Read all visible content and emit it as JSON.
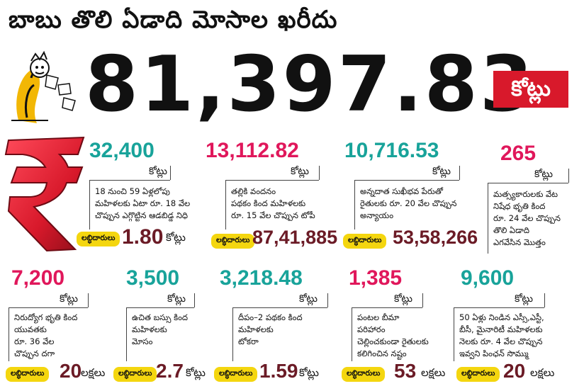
{
  "headline": "బాబు తొలి ఏడాది మోసాల ఖరీదు",
  "total": {
    "amount": "81,397.83",
    "unit": "కోట్లు"
  },
  "beneficiary_label": "లబ్ధిదారులు",
  "accent_colors": {
    "teal": "#18a39a",
    "pink": "#e0175b",
    "red": "#d8192b",
    "yellow": "#f4d60f"
  },
  "items": [
    {
      "amount": "32,400",
      "unit": "కోట్లు",
      "desc": [
        "18 నుంచి 59 ఏళ్లలోపు",
        "మహిళలకు ఏటా రూ. 18 వేల",
        "చొప్పున ఎగ్గొట్టిన ఆడబిడ్డ నిధి"
      ],
      "beneficiaries": "1.80",
      "beneficiaries_unit": "కోట్లు"
    },
    {
      "amount": "13,112.82",
      "unit": "కోట్లు",
      "desc": [
        "తల్లికి వందనం",
        "పథకం కింద మహిళలకు",
        "రూ. 15 వేల చొప్పున టోపీ"
      ],
      "beneficiaries": "87,41,885",
      "beneficiaries_unit": ""
    },
    {
      "amount": "10,716.53",
      "unit": "కోట్లు",
      "desc": [
        "అన్నదాత సుఖీభవ పేరుతో",
        "రైతులకు రూ. 20 వేల చొప్పున",
        "అన్యాయం"
      ],
      "beneficiaries": "53,58,266",
      "beneficiaries_unit": ""
    },
    {
      "amount": "265",
      "unit": "కోట్లు",
      "desc": [
        "మత్స్యకారులకు వేట",
        "నిషేధ భృతి కింద",
        "రూ. 24 వేల చొప్పున",
        "తొలి ఏడాది",
        "ఎగవేసిన మొత్తం"
      ],
      "beneficiaries": "",
      "beneficiaries_unit": ""
    },
    {
      "amount": "7,200",
      "unit": "కోట్లు",
      "desc": [
        "నిరుద్యోగ భృతి కింద",
        "యువతకు",
        "రూ. 36 వేల",
        "చొప్పున దగా"
      ],
      "beneficiaries": "20",
      "beneficiaries_unit": "లక్షలు"
    },
    {
      "amount": "3,500",
      "unit": "కోట్లు",
      "desc": [
        "ఉచిత బస్సు కింద",
        "మహిళలకు",
        "మోసం"
      ],
      "beneficiaries": "2.7",
      "beneficiaries_unit": "కోట్లు"
    },
    {
      "amount": "3,218.48",
      "unit": "కోట్లు",
      "desc": [
        "దీపం–2 పథకం కింద",
        "మహిళలకు",
        "టోకరా"
      ],
      "beneficiaries": "1.59",
      "beneficiaries_unit": "కోట్లు"
    },
    {
      "amount": "1,385",
      "unit": "కోట్లు",
      "desc": [
        "పంటల బీమా",
        "పరిహారం",
        "చెల్లించకుండా రైతులకు",
        "కలిగించిన నష్టం"
      ],
      "beneficiaries": "53",
      "beneficiaries_unit": "లక్షలు"
    },
    {
      "amount": "9,600",
      "unit": "కోట్లు",
      "desc": [
        "50 ఏళ్లు నిండిన ఎస్సీ,ఎస్టీ,",
        "బీసీ, మైనారిటీ మహిళలకు",
        "నెలకు రూ. 4 వేల చొప్పున",
        "ఇవ్వని పింఛన్‌ సొమ్ము"
      ],
      "beneficiaries": "20",
      "beneficiaries_unit": "లక్షలు"
    }
  ]
}
